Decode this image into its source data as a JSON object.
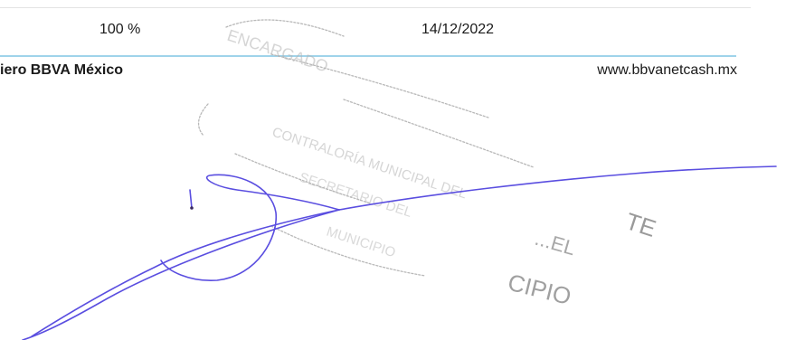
{
  "header": {
    "percent": "100 %",
    "date": "14/12/2022"
  },
  "footer": {
    "bank_name": "iero BBVA México",
    "website": "www.bbvanetcash.mx"
  },
  "stamp": {
    "line_1": "ENCARGADO",
    "line_2": "CONTRALORÍA MUNICIPAL DEL",
    "line_3": "SECRETARIO DEL",
    "line_4": "MUNICIPIO",
    "fragment_1": "TE",
    "fragment_2": "...EL",
    "fragment_3": "CIPIO"
  },
  "colors": {
    "rule_blue": "#9fd3ea",
    "signature_ink": "#5a4ee0",
    "stamp_ink": "#b4b4b4"
  }
}
